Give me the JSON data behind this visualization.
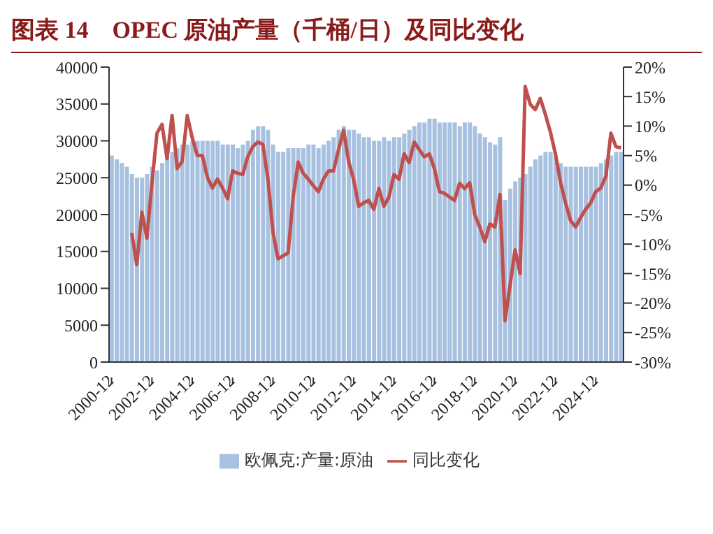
{
  "chart_data": {
    "type": "bar",
    "title": "图表 14　OPEC 原油产量（千桶/日）及同比变化",
    "categories": [
      "2000-12",
      null,
      null,
      null,
      null,
      null,
      null,
      null,
      "2002-12",
      null,
      null,
      null,
      null,
      null,
      null,
      null,
      "2004-12",
      null,
      null,
      null,
      null,
      null,
      null,
      null,
      "2006-12",
      null,
      null,
      null,
      null,
      null,
      null,
      null,
      "2008-12",
      null,
      null,
      null,
      null,
      null,
      null,
      null,
      "2010-12",
      null,
      null,
      null,
      null,
      null,
      null,
      null,
      "2012-12",
      null,
      null,
      null,
      null,
      null,
      null,
      null,
      "2014-12",
      null,
      null,
      null,
      null,
      null,
      null,
      null,
      "2016-12",
      null,
      null,
      null,
      null,
      null,
      null,
      null,
      "2018-12",
      null,
      null,
      null,
      null,
      null,
      null,
      null,
      "2020-12",
      null,
      null,
      null,
      null,
      null,
      null,
      null,
      "2022-12",
      null,
      null,
      null,
      null,
      null,
      null,
      null,
      "2024-12",
      null,
      null,
      null,
      null,
      null
    ],
    "series": [
      {
        "name": "欧佩克:产量:原油",
        "color": "#a9c1e0",
        "values": [
          28000,
          27500,
          27000,
          26500,
          25500,
          25000,
          25000,
          25500,
          26500,
          26000,
          27000,
          28000,
          28500,
          29000,
          29500,
          29500,
          30000,
          30000,
          30000,
          30000,
          30000,
          30000,
          29500,
          29500,
          29500,
          29000,
          29500,
          30000,
          31500,
          32000,
          32000,
          31500,
          29500,
          28500,
          28500,
          29000,
          29000,
          29000,
          29000,
          29500,
          29500,
          29000,
          29500,
          30000,
          30500,
          31500,
          32000,
          31500,
          31500,
          31000,
          30500,
          30500,
          30000,
          30000,
          30500,
          30000,
          30500,
          30500,
          31000,
          31500,
          32000,
          32500,
          32500,
          33000,
          33000,
          32500,
          32500,
          32500,
          32500,
          32000,
          32500,
          32500,
          32000,
          31000,
          30500,
          29800,
          29500,
          30500,
          22000,
          23500,
          24500,
          25000,
          25500,
          26500,
          27500,
          28000,
          28500,
          28500,
          28000,
          27000,
          26500,
          26500,
          26500,
          26500,
          26500,
          26500,
          26500,
          27000,
          27500,
          28000,
          28500,
          28500
        ]
      },
      {
        "name": "同比变化",
        "type": "line",
        "axis": "y2",
        "color": "#c0504d",
        "values": [
          null,
          null,
          null,
          null,
          -8.1,
          -13.5,
          -4.6,
          -9,
          0.3,
          8.8,
          10.3,
          4.5,
          11.8,
          2.8,
          4,
          11.8,
          8,
          5,
          5,
          1.3,
          -0.5,
          1,
          -0.5,
          -2.3,
          2.4,
          2,
          1.8,
          4.8,
          6.5,
          7.3,
          6.9,
          1,
          -8,
          -12.5,
          -12,
          -11.5,
          -2,
          3.9,
          2,
          1,
          -0.1,
          -1.1,
          1,
          2.4,
          2.4,
          6,
          9.3,
          4,
          0.9,
          -3.6,
          -3,
          -2.6,
          -4.1,
          -0.6,
          -3.6,
          -2,
          1.8,
          1,
          5.3,
          3.8,
          7.3,
          6,
          4.8,
          5.3,
          2.8,
          -1.1,
          -1.4,
          -2,
          -2.6,
          0.3,
          -0.6,
          0.4,
          -5,
          -7.1,
          -9.6,
          -6.6,
          -7.1,
          -1.6,
          -23,
          -17,
          -11,
          -15,
          16.7,
          13.7,
          12.8,
          14.7,
          12,
          9,
          5.3,
          0.5,
          -3,
          -6,
          -7.1,
          -5.5,
          -4.1,
          -3,
          -1.1,
          -0.5,
          1.5,
          8.8,
          6.5,
          6.3
        ]
      }
    ],
    "ylim": [
      0,
      40000
    ],
    "yticks": [
      0,
      5000,
      10000,
      15000,
      20000,
      25000,
      30000,
      35000,
      40000
    ],
    "y2lim": [
      -30,
      20
    ],
    "y2ticks": [
      {
        "value": -30,
        "label": "-30%"
      },
      {
        "value": -25,
        "label": "-25%"
      },
      {
        "value": -20,
        "label": "-20%"
      },
      {
        "value": -15,
        "label": "-15%"
      },
      {
        "value": -10,
        "label": "-10%"
      },
      {
        "value": -5,
        "label": "-5%"
      },
      {
        "value": 0,
        "label": "0%"
      },
      {
        "value": 5,
        "label": "5%"
      },
      {
        "value": 10,
        "label": "10%"
      },
      {
        "value": 15,
        "label": "15%"
      },
      {
        "value": 20,
        "label": "20%"
      }
    ],
    "grid": false,
    "legend": "bottom"
  }
}
